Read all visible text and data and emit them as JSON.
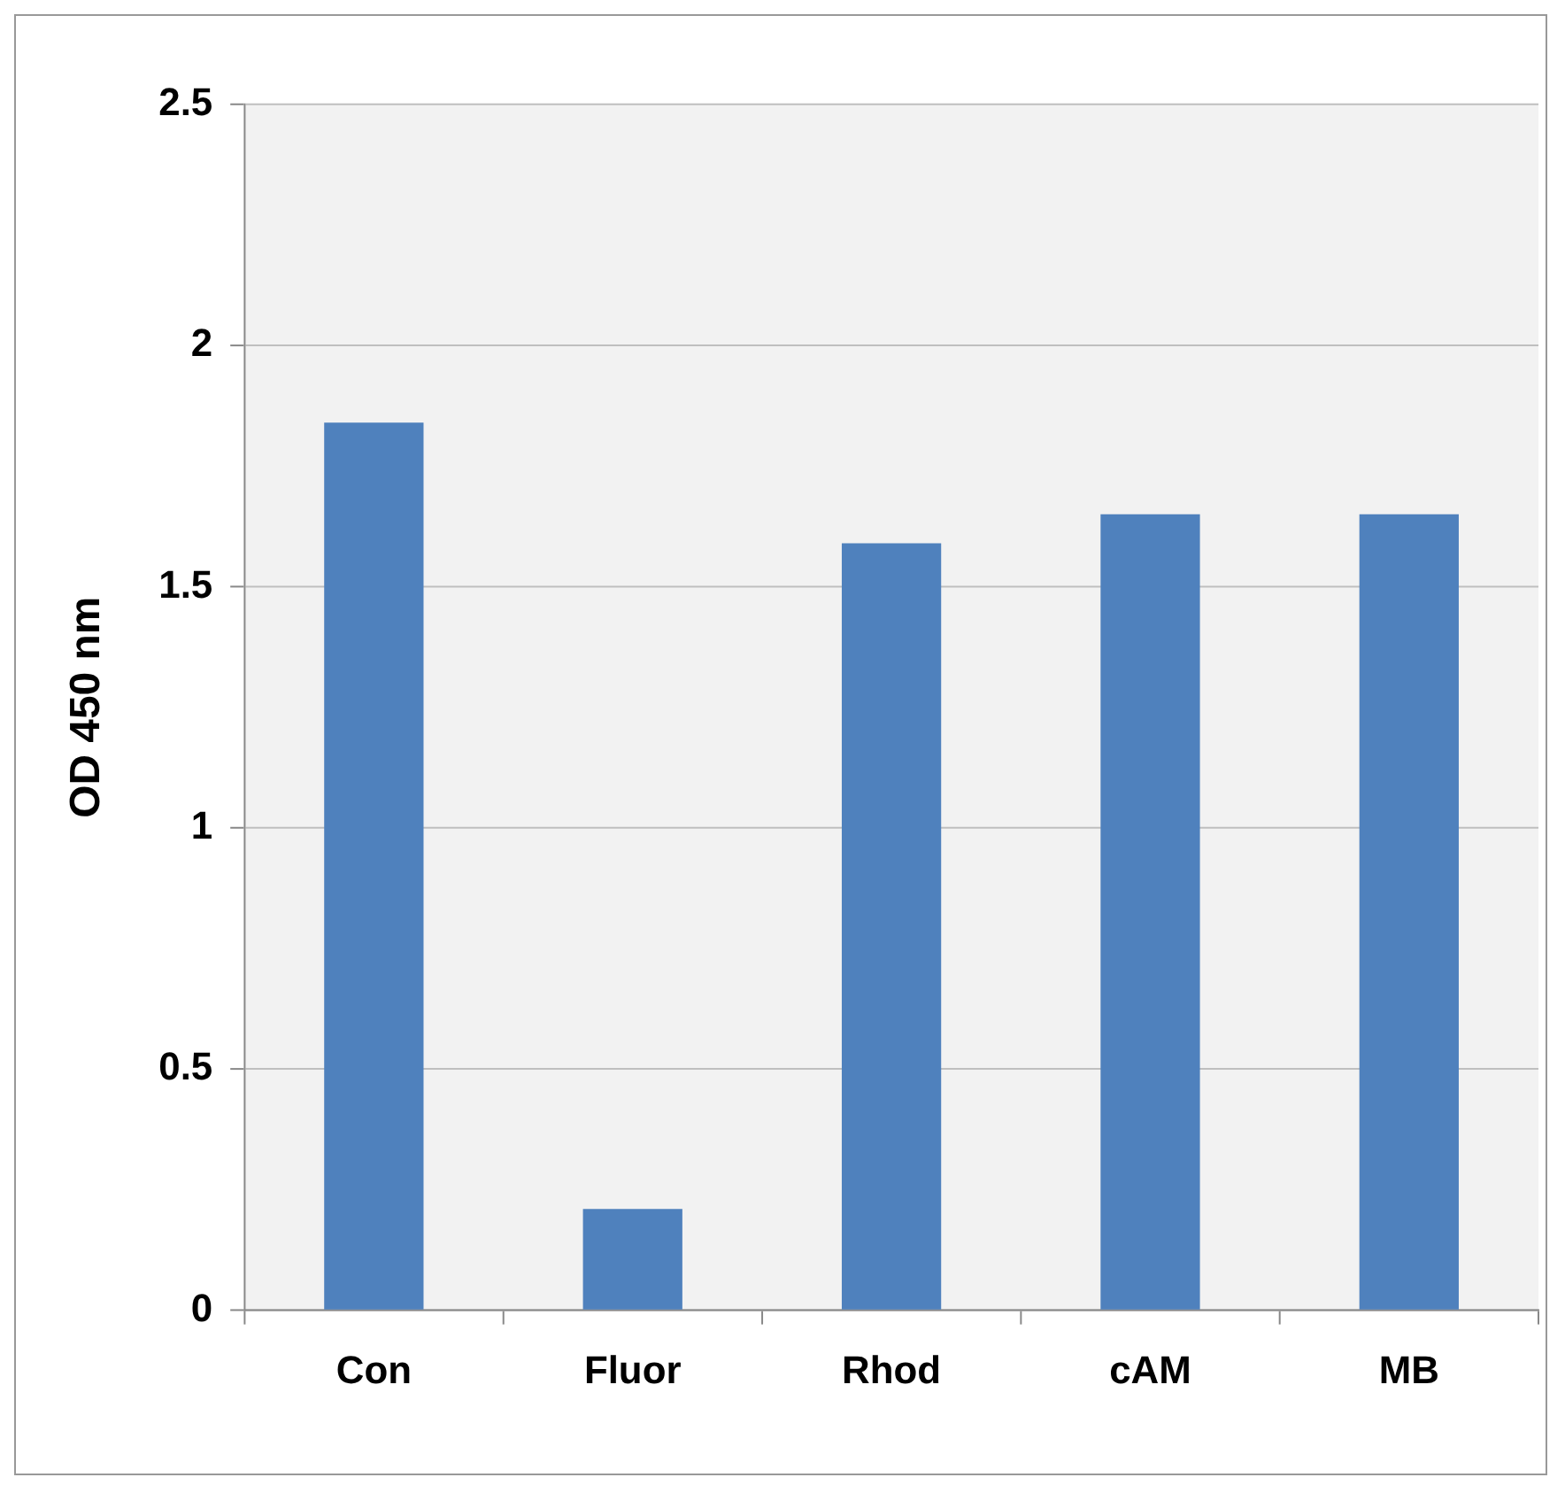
{
  "chart_data": {
    "type": "bar",
    "ylabel": "OD 450 nm",
    "categories": [
      "Con",
      "Fluor",
      "Rhod",
      "cAM",
      "MB"
    ],
    "values": [
      1.84,
      0.21,
      1.59,
      1.65,
      1.65
    ],
    "color": "#4f81bd",
    "ylim": [
      0,
      2.5
    ],
    "yticks": [
      0,
      0.5,
      1,
      1.5,
      2,
      2.5
    ],
    "grid": "y",
    "legend": false
  }
}
